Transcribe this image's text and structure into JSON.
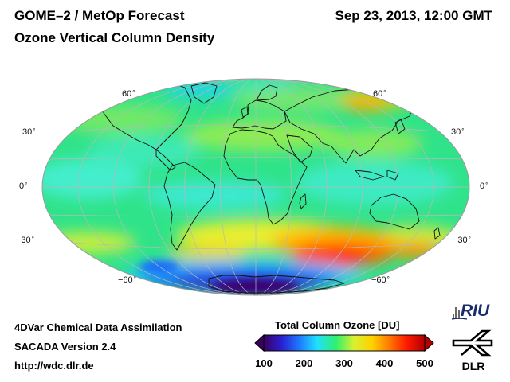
{
  "header": {
    "title": "GOME–2 / MetOp Forecast",
    "subtitle": "Ozone Vertical Column Density",
    "datetime": "Sep 23, 2013, 12:00 GMT"
  },
  "map": {
    "projection": "Hammer-Aitoff (global)",
    "latitude_labels": {
      "left": [
        "60",
        "30",
        "0",
        "−30",
        "−60"
      ],
      "right": [
        "60",
        "30",
        "0",
        "−30",
        "−60"
      ]
    },
    "degree_symbol": "°",
    "colors": {
      "background": "#2fe38a",
      "graticule": "#b9b9b9",
      "coast": "#111111"
    }
  },
  "footer": {
    "line1": "4DVar Chemical Data Assimilation",
    "line2": "SACADA Version 2.4",
    "line3": "http://wdc.dlr.de"
  },
  "colorbar": {
    "title": "Total Column Ozone [DU]",
    "ticks": [
      "100",
      "200",
      "300",
      "400",
      "500"
    ],
    "range": [
      100,
      500
    ],
    "colors": [
      "#3a0060",
      "#2a1fd0",
      "#1e78ff",
      "#20e0ff",
      "#30f070",
      "#d8f030",
      "#ffd200",
      "#ff7a00",
      "#ff1800",
      "#b00000"
    ]
  },
  "logos": {
    "riu": "RIU",
    "dlr": "DLR"
  }
}
